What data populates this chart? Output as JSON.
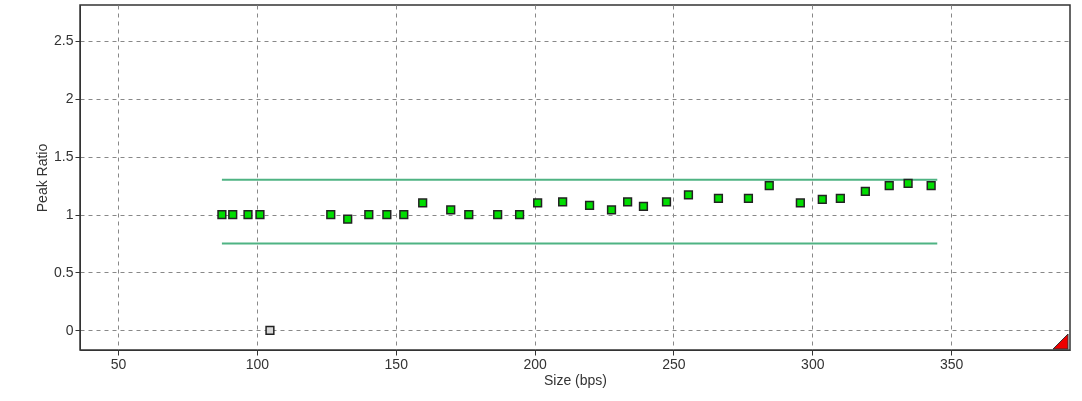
{
  "chart_data": {
    "type": "scatter",
    "xlabel": "Size (bps)",
    "ylabel": "Peak Ratio",
    "xlim": [
      36.3,
      392.8
    ],
    "ylim": [
      -0.17,
      2.81
    ],
    "xticks": [
      50,
      100,
      150,
      200,
      250,
      300,
      350
    ],
    "yticks": [
      0,
      0.5,
      1,
      1.5,
      2,
      2.5
    ],
    "grid": true,
    "marker": "square",
    "series": [
      {
        "type": "line",
        "marker": "none",
        "color": "#4fb383",
        "x": [
          87.4,
          345
        ],
        "values": [
          1.3,
          1.3
        ]
      },
      {
        "type": "line",
        "marker": "none",
        "color": "#4fb383",
        "x": [
          87.4,
          345
        ],
        "values": [
          0.75,
          0.75
        ]
      },
      {
        "color": "#00dd00",
        "x": [
          87.4,
          91.3,
          96.8,
          101.1,
          126.6,
          132.7,
          140.3,
          146.8,
          152.9,
          159.7,
          169.8,
          176.3,
          186.7,
          194.6,
          201.1,
          210.1,
          219.8,
          227.7,
          233.5,
          239.2,
          247.5,
          255.4,
          266.2,
          277,
          284.5,
          295.7,
          303.6,
          310.1,
          319.1,
          327.7,
          334.5,
          342.8
        ],
        "values": [
          1,
          1,
          1,
          1,
          1,
          0.96,
          1,
          1,
          1,
          1.1,
          1.04,
          1,
          1,
          1,
          1.1,
          1.11,
          1.08,
          1.04,
          1.11,
          1.07,
          1.11,
          1.17,
          1.14,
          1.14,
          1.25,
          1.1,
          1.13,
          1.14,
          1.2,
          1.25,
          1.27,
          1.25
        ]
      },
      {
        "color": "#d9d9d9",
        "x": [
          104.7
        ],
        "values": [
          0
        ]
      }
    ]
  }
}
